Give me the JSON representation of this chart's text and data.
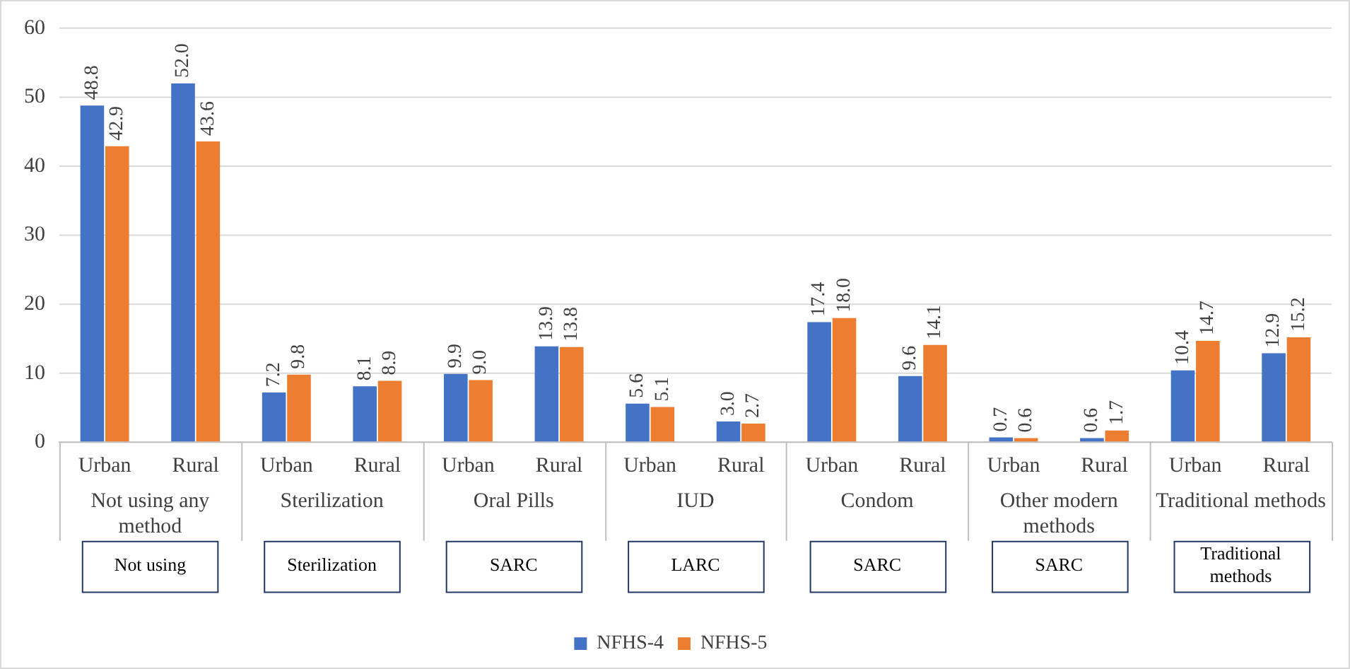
{
  "chart_data": {
    "type": "bar",
    "categories": [
      "Urban",
      "Rural",
      "Urban",
      "Rural",
      "Urban",
      "Rural",
      "Urban",
      "Rural",
      "Urban",
      "Rural",
      "Urban",
      "Rural",
      "Urban",
      "Rural"
    ],
    "series": [
      {
        "name": "NFHS-4",
        "color": "#4472c4",
        "values": [
          48.8,
          52.0,
          7.2,
          8.1,
          9.9,
          13.9,
          5.6,
          3.0,
          17.4,
          9.6,
          0.7,
          0.6,
          10.4,
          12.9
        ],
        "value_labels": [
          "48.8",
          "52.0",
          "7.2",
          "8.1",
          "9.9",
          "13.9",
          "5.6",
          "3.0",
          "17.4",
          "9.6",
          "0.7",
          "0.6",
          "10.4",
          "12.9"
        ]
      },
      {
        "name": "NFHS-5",
        "color": "#ed7d31",
        "values": [
          42.9,
          43.6,
          9.8,
          8.9,
          9.0,
          13.8,
          5.1,
          2.7,
          18.0,
          14.1,
          0.6,
          1.7,
          14.7,
          15.2
        ],
        "value_labels": [
          "42.9",
          "43.6",
          "9.8",
          "8.9",
          "9.0",
          "13.8",
          "5.1",
          "2.7",
          "18.0",
          "14.1",
          "0.6",
          "1.7",
          "14.7",
          "15.2"
        ]
      }
    ],
    "ylim": [
      0,
      60
    ],
    "yticks": [
      0,
      10,
      20,
      30,
      40,
      50,
      60
    ],
    "grid": "y",
    "legend": "bottom",
    "annotations": [
      "Not using any method",
      "Sterilization",
      "Oral Pills",
      "IUD",
      "Condom",
      "Other modern methods",
      "Traditional methods",
      "Not using",
      "Sterilization",
      "SARC",
      "LARC",
      "SARC",
      "SARC",
      "Traditional methods"
    ]
  }
}
